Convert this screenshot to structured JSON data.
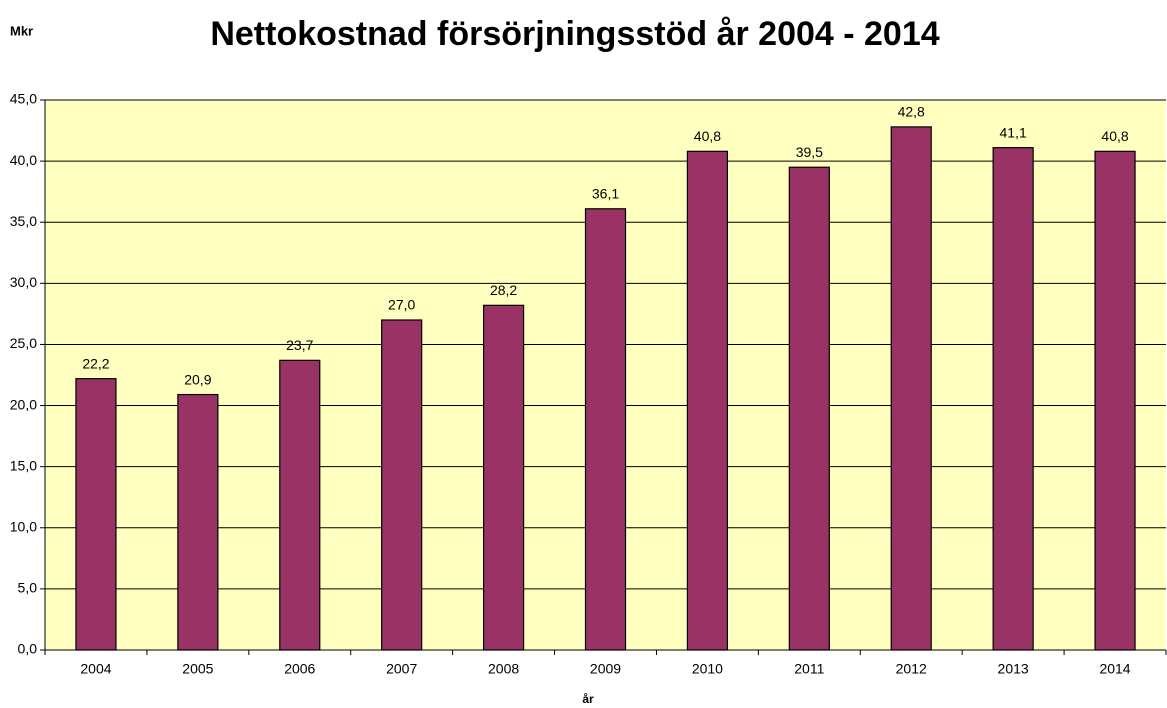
{
  "chart_data": {
    "type": "bar",
    "title": "Nettokostnad försörjningsstöd år 2004 - 2014",
    "y_label": "Mkr",
    "x_label": "år",
    "categories": [
      "2004",
      "2005",
      "2006",
      "2007",
      "2008",
      "2009",
      "2010",
      "2011",
      "2012",
      "2013",
      "2014"
    ],
    "values": [
      22.2,
      20.9,
      23.7,
      27.0,
      28.2,
      36.1,
      40.8,
      39.5,
      42.8,
      41.1,
      40.8
    ],
    "value_labels": [
      "22,2",
      "20,9",
      "23,7",
      "27,0",
      "28,2",
      "36,1",
      "40,8",
      "39,5",
      "42,8",
      "41,1",
      "40,8"
    ],
    "color": "#993366",
    "ylim": [
      0,
      45
    ],
    "yticks": [
      {
        "value": 0,
        "label": "0,0"
      },
      {
        "value": 5,
        "label": "5,0"
      },
      {
        "value": 10,
        "label": "10,0"
      },
      {
        "value": 15,
        "label": "15,0"
      },
      {
        "value": 20,
        "label": "20,0"
      },
      {
        "value": 25,
        "label": "25,0"
      },
      {
        "value": 30,
        "label": "30,0"
      },
      {
        "value": 35,
        "label": "35,0"
      },
      {
        "value": 40,
        "label": "40,0"
      },
      {
        "value": 45,
        "label": "45,0"
      }
    ],
    "grid": true
  }
}
